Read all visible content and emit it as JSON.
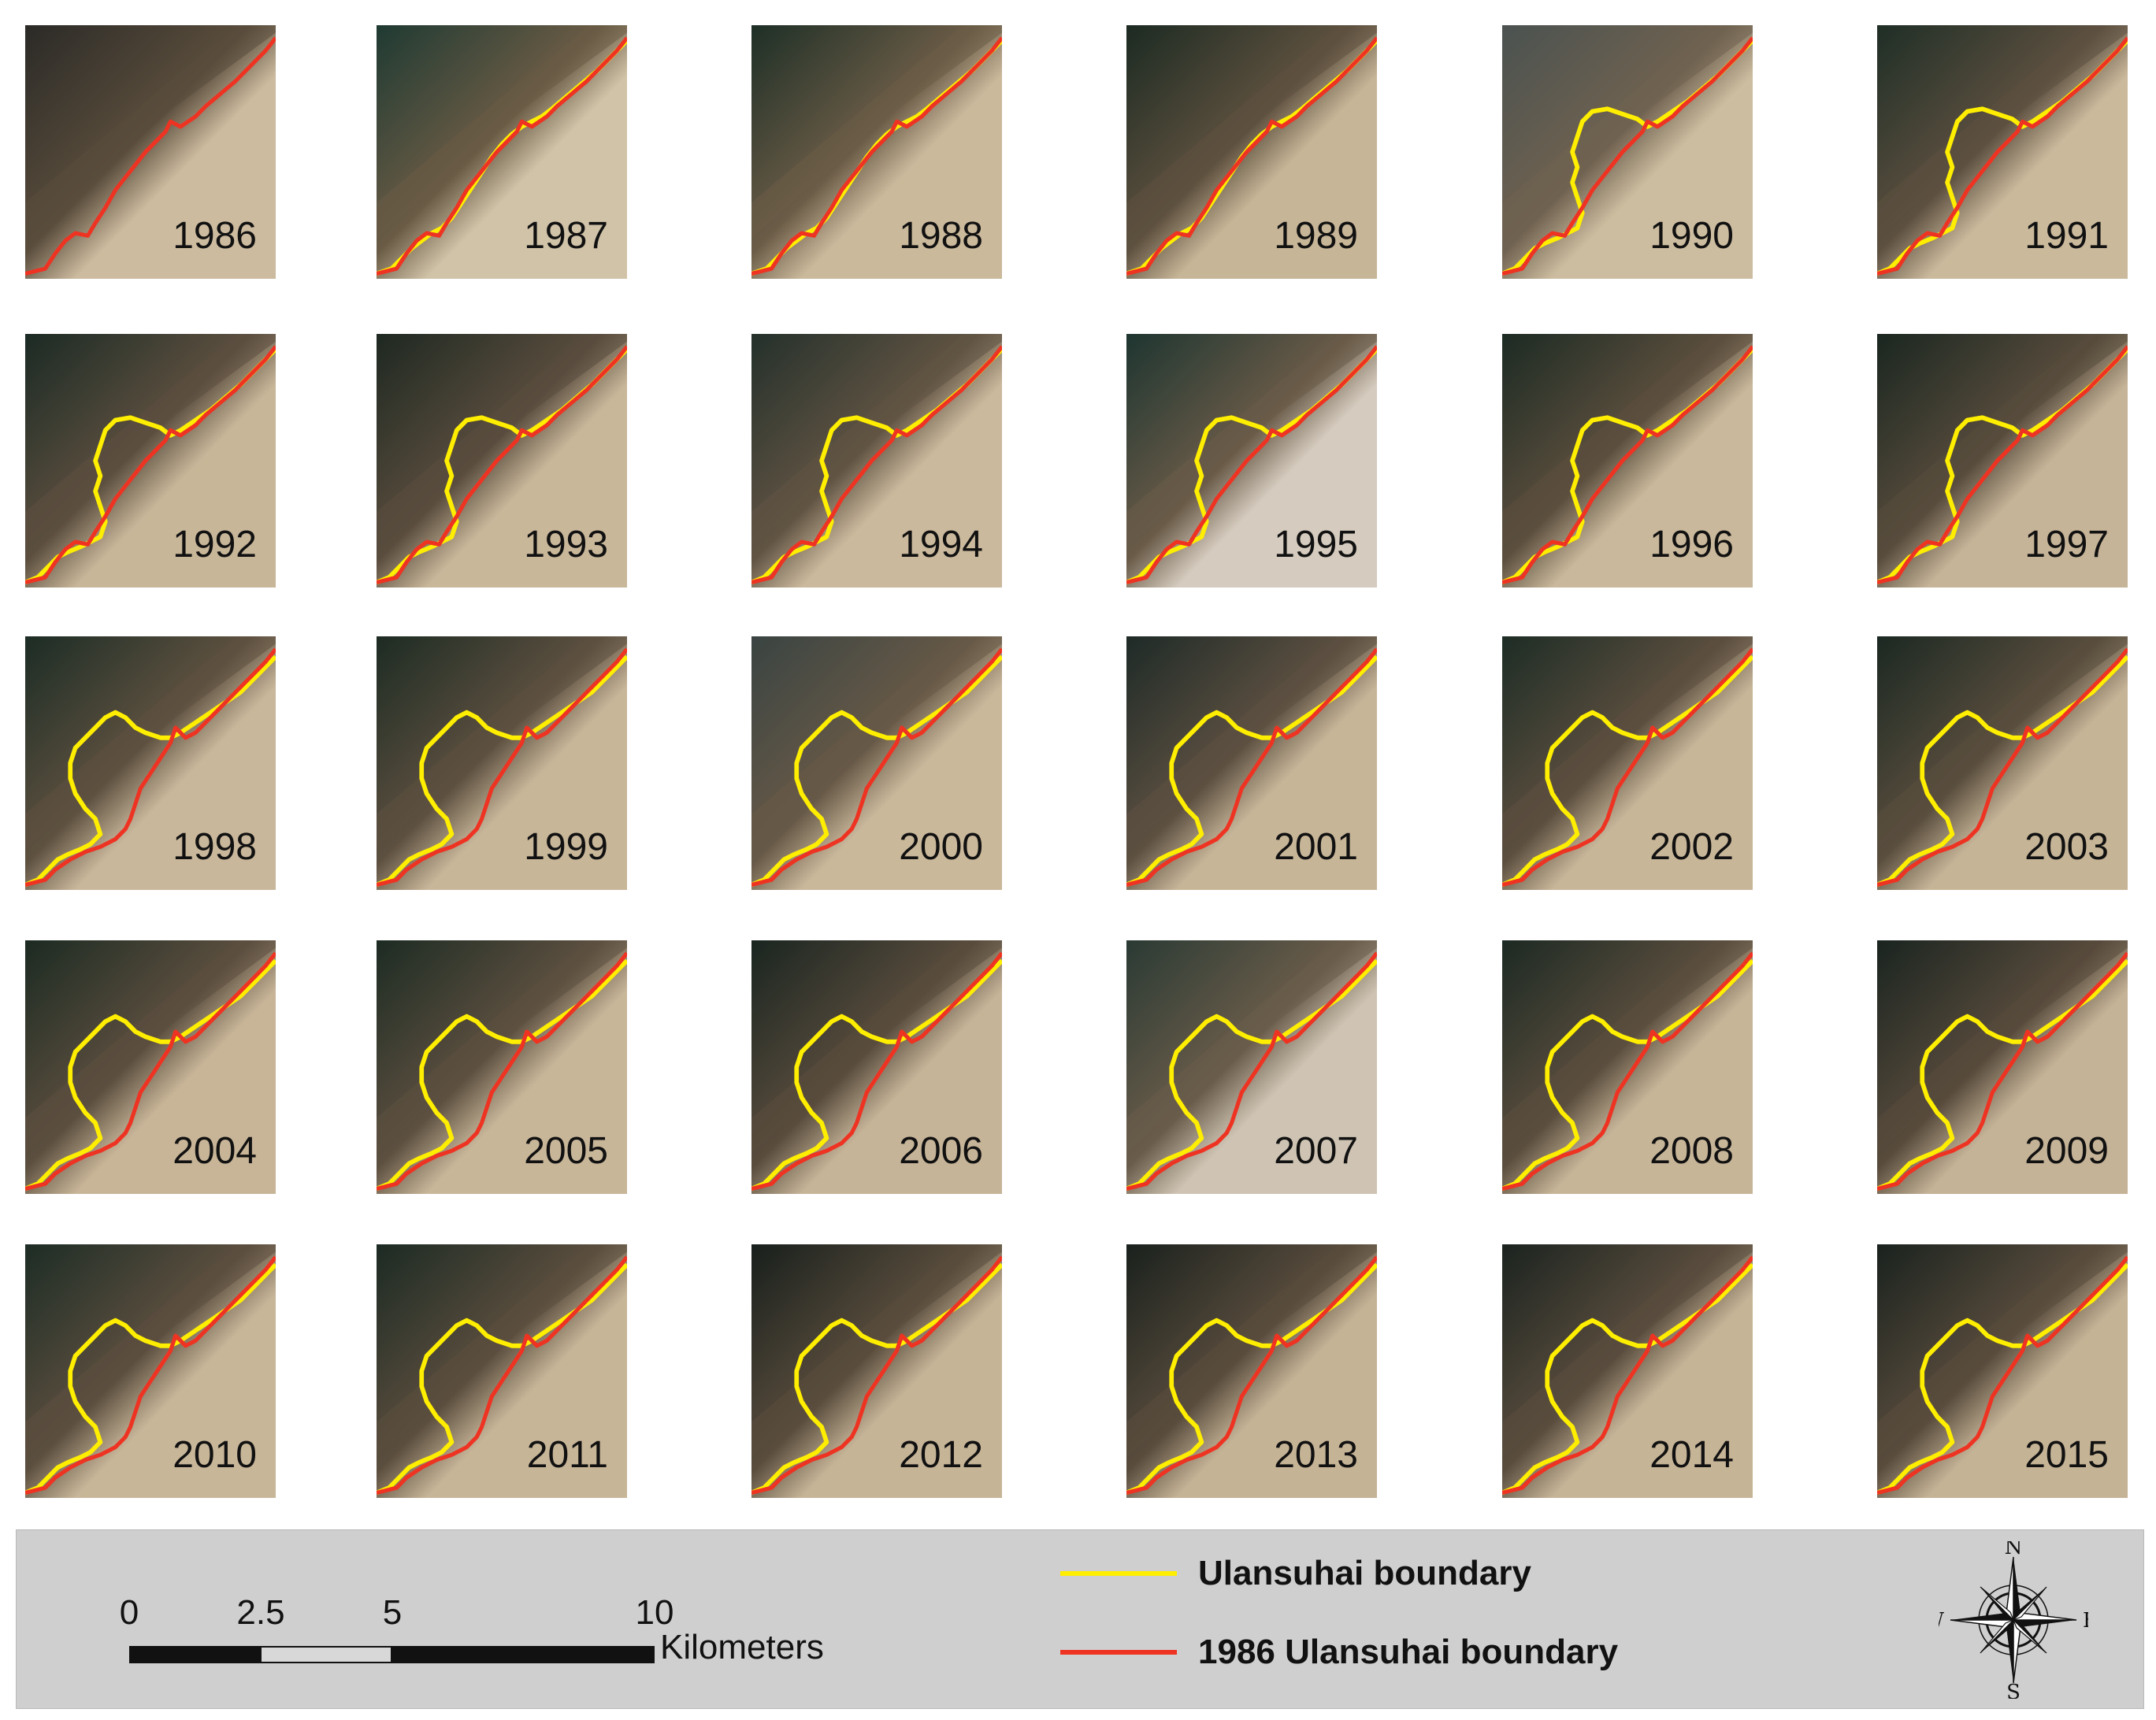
{
  "panels": [
    {
      "year": "1986"
    },
    {
      "year": "1987"
    },
    {
      "year": "1988"
    },
    {
      "year": "1989"
    },
    {
      "year": "1990"
    },
    {
      "year": "1991"
    },
    {
      "year": "1992"
    },
    {
      "year": "1993"
    },
    {
      "year": "1994"
    },
    {
      "year": "1995"
    },
    {
      "year": "1996"
    },
    {
      "year": "1997"
    },
    {
      "year": "1998"
    },
    {
      "year": "1999"
    },
    {
      "year": "2000"
    },
    {
      "year": "2001"
    },
    {
      "year": "2002"
    },
    {
      "year": "2003"
    },
    {
      "year": "2004"
    },
    {
      "year": "2005"
    },
    {
      "year": "2006"
    },
    {
      "year": "2007"
    },
    {
      "year": "2008"
    },
    {
      "year": "2009"
    },
    {
      "year": "2010"
    },
    {
      "year": "2011"
    },
    {
      "year": "2012"
    },
    {
      "year": "2013"
    },
    {
      "year": "2014"
    },
    {
      "year": "2015"
    }
  ],
  "scalebar": {
    "ticks": [
      "0",
      "2.5",
      "5",
      "10"
    ],
    "unit": "Kilometers"
  },
  "legend": {
    "items": [
      {
        "label": "Ulansuhai boundary",
        "color": "#ffee00"
      },
      {
        "label": "1986 Ulansuhai boundary",
        "color": "#ee3322"
      }
    ]
  },
  "compass": {
    "n": "N",
    "s": "S",
    "e": "E",
    "w": "W"
  }
}
